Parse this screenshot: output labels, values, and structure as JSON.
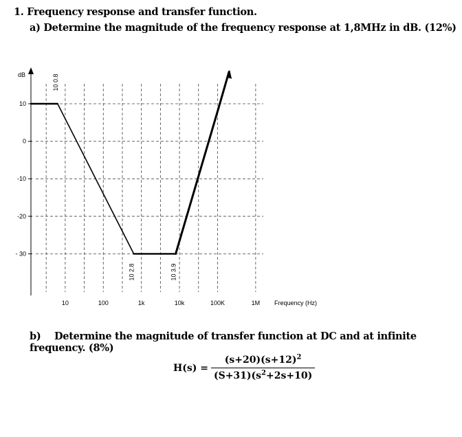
{
  "question": {
    "title": "1.  Frequency response and transfer function.",
    "part_a": "a)  Determine the magnitude of the frequency response at 1,8MHz in dB.  (12%)",
    "part_b_label": "b)",
    "part_b": "Determine the magnitude of transfer function at DC and at infinite frequency. (8%)"
  },
  "formula": {
    "lhs": "H(s) =",
    "numerator": "(s+20)(s+12)",
    "numerator_exp": "2",
    "denominator_a": "(S+31)(s",
    "denominator_exp": "2",
    "denominator_b": "+2s+10)"
  },
  "chart_data": {
    "type": "line",
    "title": "",
    "xlabel": "Frequency (Hz)",
    "ylabel": "dB",
    "x_scale": "log",
    "x_ticks": [
      {
        "value": 10,
        "label": "10"
      },
      {
        "value": 100,
        "label": "100"
      },
      {
        "value": 1000,
        "label": "1k"
      },
      {
        "value": 10000,
        "label": "10k"
      },
      {
        "value": 100000,
        "label": "100K"
      },
      {
        "value": 1000000,
        "label": "1M"
      }
    ],
    "y_ticks": [
      {
        "value": 10,
        "label": "10"
      },
      {
        "value": 0,
        "label": "0"
      },
      {
        "value": -10,
        "label": "-10"
      },
      {
        "value": -20,
        "label": "-20"
      },
      {
        "value": -30,
        "label": "- 30"
      }
    ],
    "xlim_log10": [
      0.1,
      6
    ],
    "ylim": [
      -37,
      17
    ],
    "grid": true,
    "series": [
      {
        "points": [
          {
            "log10x": 0.1,
            "y": 10
          },
          {
            "log10x": 0.8,
            "y": 10
          },
          {
            "log10x": 2.8,
            "y": -30
          },
          {
            "log10x": 3.9,
            "y": -30
          },
          {
            "log10x": 5.03,
            "y": 9
          },
          {
            "log10x": 5.3,
            "y": 18.5
          }
        ]
      }
    ],
    "annotations": [
      {
        "text": "10 0.8",
        "log10x": 0.8,
        "y": 10
      },
      {
        "text": "10 2.8",
        "log10x": 2.8,
        "y": -30
      },
      {
        "text": "10 3.9",
        "log10x": 3.9,
        "y": -30
      }
    ]
  }
}
